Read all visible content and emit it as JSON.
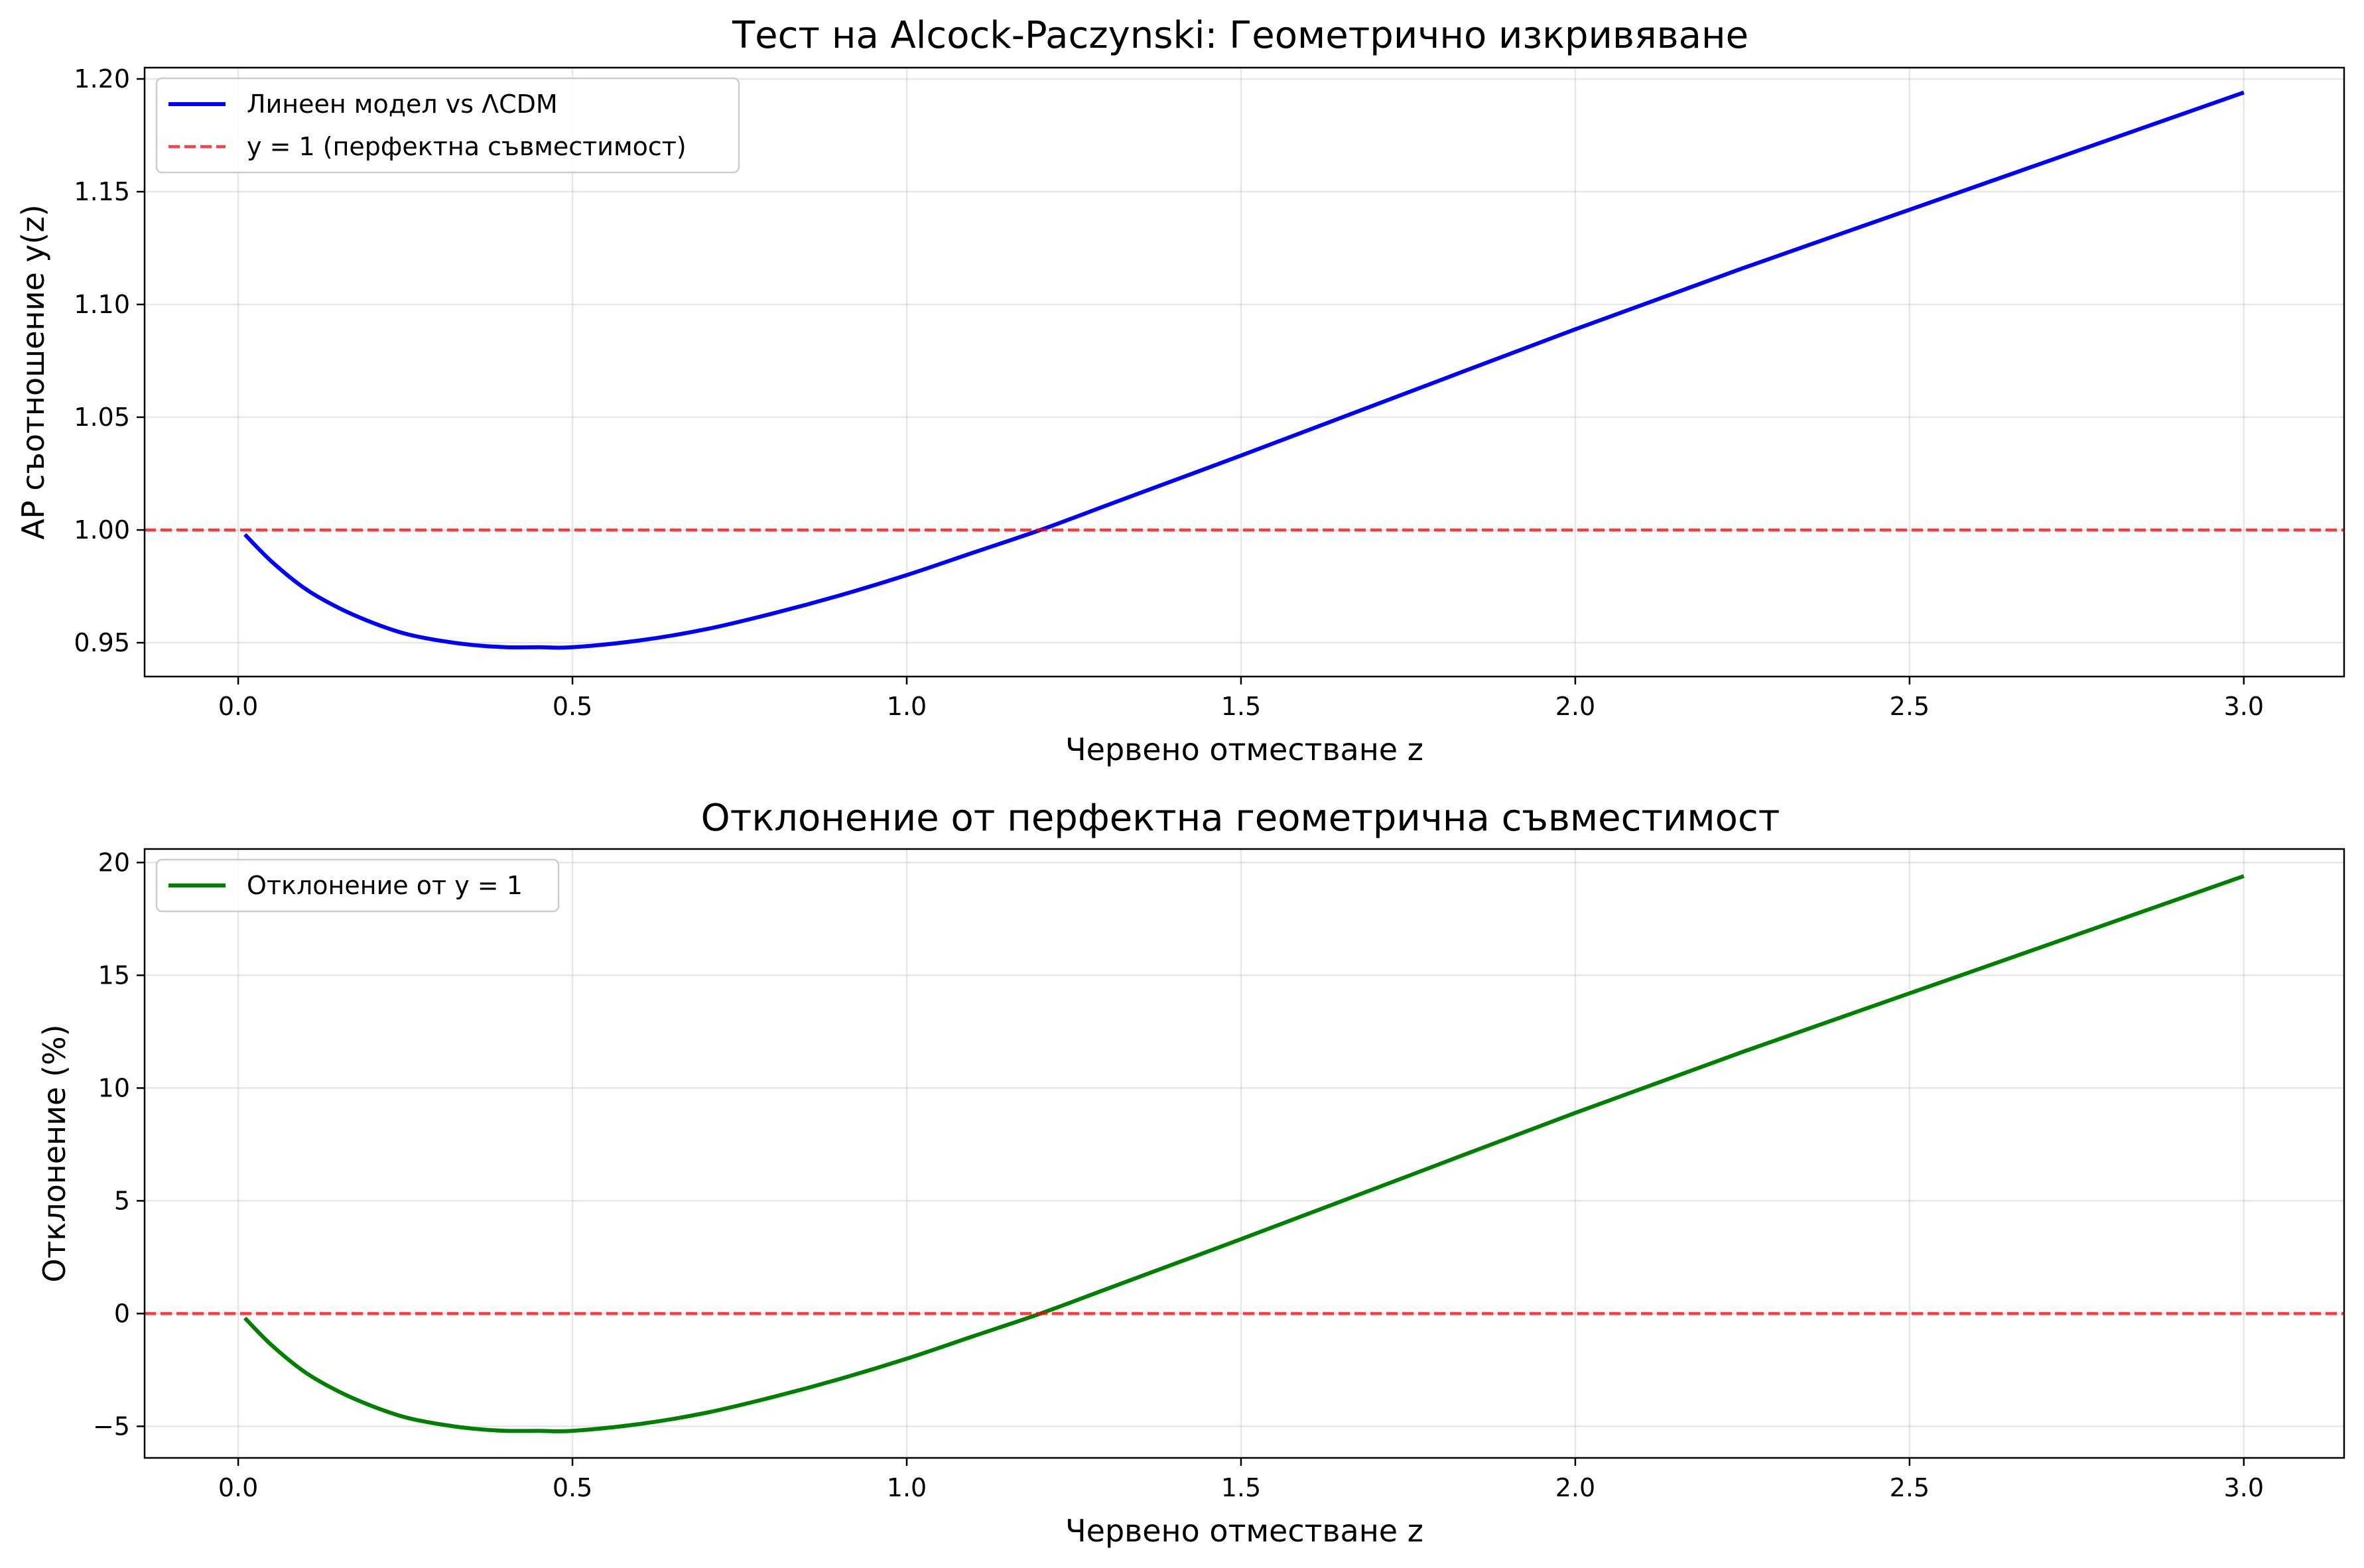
{
  "chart_data": [
    {
      "type": "line",
      "title": "Тест на Alcock-Paczynski: Геометрично изкривяване",
      "xlabel": "Червено отместване z",
      "ylabel": "AP съотношение y(z)",
      "xlim": [
        -0.14,
        3.15
      ],
      "ylim": [
        0.935,
        1.205
      ],
      "xticks": [
        0.0,
        0.5,
        1.0,
        1.5,
        2.0,
        2.5,
        3.0
      ],
      "xtick_labels": [
        "0.0",
        "0.5",
        "1.0",
        "1.5",
        "2.0",
        "2.5",
        "3.0"
      ],
      "yticks": [
        0.95,
        1.0,
        1.05,
        1.1,
        1.15,
        1.2
      ],
      "ytick_labels": [
        "0.95",
        "1.00",
        "1.05",
        "1.10",
        "1.15",
        "1.20"
      ],
      "grid": true,
      "legend_position": "top-left",
      "series": [
        {
          "name": "Линеен модел vs ΛCDM",
          "color": "#0000ff",
          "style": "solid",
          "x": [
            0.01,
            0.05,
            0.1,
            0.15,
            0.2,
            0.25,
            0.3,
            0.35,
            0.4,
            0.45,
            0.5,
            0.6,
            0.7,
            0.8,
            0.9,
            1.0,
            1.1,
            1.2,
            1.3,
            1.4,
            1.5,
            1.75,
            2.0,
            2.25,
            2.5,
            2.75,
            3.0
          ],
          "y": [
            0.998,
            0.986,
            0.974,
            0.9655,
            0.959,
            0.954,
            0.951,
            0.949,
            0.948,
            0.948,
            0.948,
            0.951,
            0.956,
            0.963,
            0.971,
            0.98,
            0.99,
            1.0,
            1.011,
            1.022,
            1.033,
            1.061,
            1.089,
            1.116,
            1.142,
            1.168,
            1.194
          ]
        },
        {
          "name": "y = 1 (перфектна съвместимост)",
          "color": "#ff0000",
          "style": "dashed",
          "hline": 1.0
        }
      ]
    },
    {
      "type": "line",
      "title": "Отклонение от перфектна геометрична съвместимост",
      "xlabel": "Червено отместване z",
      "ylabel": "Отклонение (%)",
      "xlim": [
        -0.14,
        3.15
      ],
      "ylim": [
        -6.4,
        20.6
      ],
      "xticks": [
        0.0,
        0.5,
        1.0,
        1.5,
        2.0,
        2.5,
        3.0
      ],
      "xtick_labels": [
        "0.0",
        "0.5",
        "1.0",
        "1.5",
        "2.0",
        "2.5",
        "3.0"
      ],
      "yticks": [
        -5,
        0,
        5,
        10,
        15,
        20
      ],
      "ytick_labels": [
        "−5",
        "0",
        "5",
        "10",
        "15",
        "20"
      ],
      "grid": true,
      "legend_position": "top-left",
      "series": [
        {
          "name": "Отклонение от y = 1",
          "color": "#008000",
          "style": "solid",
          "x": [
            0.01,
            0.05,
            0.1,
            0.15,
            0.2,
            0.25,
            0.3,
            0.35,
            0.4,
            0.45,
            0.5,
            0.6,
            0.7,
            0.8,
            0.9,
            1.0,
            1.1,
            1.2,
            1.3,
            1.4,
            1.5,
            1.75,
            2.0,
            2.25,
            2.5,
            2.75,
            3.0
          ],
          "y": [
            -0.2,
            -1.4,
            -2.6,
            -3.45,
            -4.1,
            -4.6,
            -4.9,
            -5.1,
            -5.2,
            -5.2,
            -5.2,
            -4.9,
            -4.4,
            -3.7,
            -2.9,
            -2.0,
            -1.0,
            0.0,
            1.1,
            2.2,
            3.3,
            6.1,
            8.9,
            11.6,
            14.2,
            16.8,
            19.4
          ]
        },
        {
          "color": "#ff0000",
          "style": "dashed",
          "hline": 0
        }
      ]
    }
  ]
}
